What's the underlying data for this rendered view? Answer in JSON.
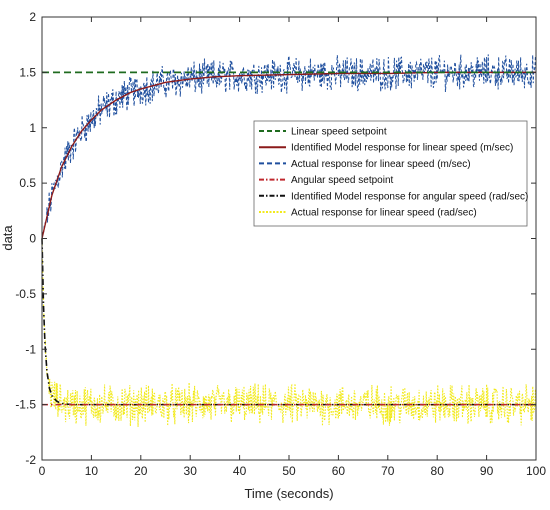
{
  "chart_data": {
    "type": "line",
    "title": "",
    "xlabel": "Time (seconds)",
    "ylabel": "data",
    "xlim": [
      0,
      100
    ],
    "ylim": [
      -2,
      2
    ],
    "xticks": [
      "0",
      "10",
      "20",
      "30",
      "40",
      "50",
      "60",
      "70",
      "80",
      "90",
      "100"
    ],
    "yticks": [
      "-2",
      "-1.5",
      "-1",
      "-0.5",
      "0",
      "0.5",
      "1",
      "1.5",
      "2"
    ],
    "grid": false,
    "legend_position": "center-right",
    "series": [
      {
        "name": "Linear speed setpoint",
        "style": "dashed",
        "color": "#1f6b1f",
        "x": [
          0,
          100
        ],
        "y": [
          1.5,
          1.5
        ]
      },
      {
        "name": "Identified Model response for linear speed (m/sec)",
        "style": "solid",
        "color": "#8b1a1a",
        "x": [
          0,
          2,
          4,
          6,
          8,
          10,
          12,
          15,
          18,
          20,
          25,
          30,
          35,
          40,
          50,
          60,
          70,
          80,
          90,
          100
        ],
        "y": [
          0,
          0.39,
          0.65,
          0.83,
          0.97,
          1.07,
          1.16,
          1.25,
          1.32,
          1.35,
          1.41,
          1.44,
          1.46,
          1.47,
          1.48,
          1.49,
          1.49,
          1.5,
          1.5,
          1.5
        ]
      },
      {
        "name": "Actual response for linear speed (m/sec)",
        "style": "dashed-noisy",
        "color": "#1f4f9e",
        "x": [
          0,
          2,
          4,
          6,
          8,
          10,
          12,
          15,
          18,
          20,
          25,
          30,
          35,
          40,
          50,
          60,
          70,
          80,
          90,
          100
        ],
        "y": [
          0,
          0.39,
          0.65,
          0.83,
          0.97,
          1.07,
          1.16,
          1.25,
          1.32,
          1.35,
          1.41,
          1.44,
          1.46,
          1.47,
          1.48,
          1.49,
          1.49,
          1.5,
          1.5,
          1.5
        ],
        "noise_amplitude": 0.12
      },
      {
        "name": "Angular speed setpoint",
        "style": "dash-dot",
        "color": "#c0272d",
        "x": [
          0,
          100
        ],
        "y": [
          -1.5,
          -1.5
        ]
      },
      {
        "name": "Identified Model response for angular speed (rad/sec)",
        "style": "dash-dot",
        "color": "#111111",
        "x": [
          0,
          0.3,
          0.6,
          1,
          1.5,
          2,
          3,
          4,
          5,
          6,
          8,
          10,
          20,
          40,
          60,
          80,
          100
        ],
        "y": [
          0,
          -0.6,
          -0.95,
          -1.2,
          -1.35,
          -1.42,
          -1.47,
          -1.49,
          -1.495,
          -1.5,
          -1.5,
          -1.5,
          -1.5,
          -1.5,
          -1.5,
          -1.5,
          -1.5
        ]
      },
      {
        "name": "Actual response for linear speed (rad/sec)",
        "style": "dotted-noisy",
        "color": "#f2ea1c",
        "x": [
          0,
          0.3,
          0.6,
          1,
          1.5,
          2,
          3,
          4,
          5,
          6,
          8,
          10,
          20,
          40,
          60,
          80,
          100
        ],
        "y": [
          0,
          -0.6,
          -0.95,
          -1.2,
          -1.35,
          -1.42,
          -1.47,
          -1.49,
          -1.495,
          -1.5,
          -1.5,
          -1.5,
          -1.5,
          -1.5,
          -1.5,
          -1.5,
          -1.5
        ],
        "noise_amplitude": 0.14
      }
    ]
  }
}
